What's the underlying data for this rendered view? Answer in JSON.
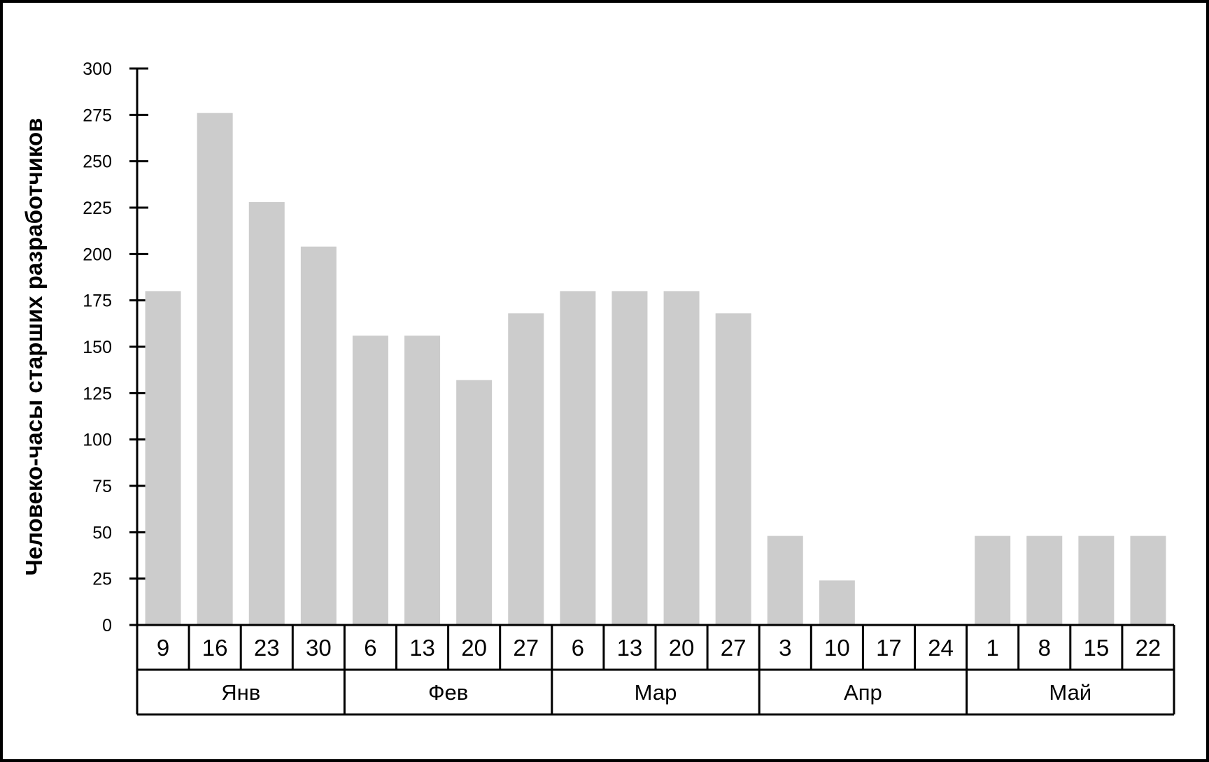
{
  "chart_data": {
    "type": "bar",
    "title": "",
    "xlabel": "",
    "ylabel": "Человеко-часы старших разработчиков",
    "ylim": [
      0,
      300
    ],
    "yticks": [
      0,
      25,
      50,
      75,
      100,
      125,
      150,
      175,
      200,
      225,
      250,
      275,
      300
    ],
    "categories": [
      "9",
      "16",
      "23",
      "30",
      "6",
      "13",
      "20",
      "27",
      "6",
      "13",
      "20",
      "27",
      "3",
      "10",
      "17",
      "24",
      "1",
      "8",
      "15",
      "22"
    ],
    "values": [
      180,
      276,
      228,
      204,
      156,
      156,
      132,
      168,
      180,
      180,
      180,
      168,
      48,
      24,
      0,
      0,
      48,
      48,
      48,
      48
    ],
    "groups": [
      {
        "label": "Янв",
        "count": 4
      },
      {
        "label": "Фев",
        "count": 4
      },
      {
        "label": "Мар",
        "count": 4
      },
      {
        "label": "Апр",
        "count": 4
      },
      {
        "label": "Май",
        "count": 4
      }
    ],
    "bar_color": "#cccccc",
    "grid": false,
    "legend": "none"
  }
}
